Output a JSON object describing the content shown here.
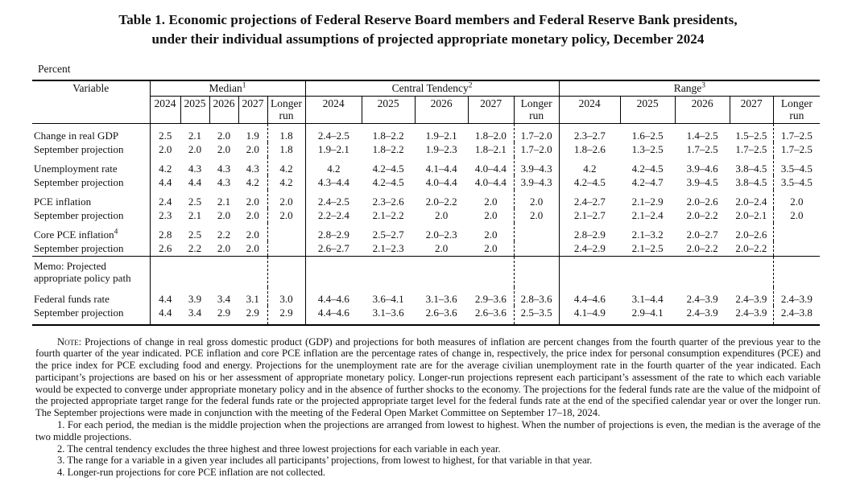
{
  "title": {
    "line1": "Table 1. Economic projections of Federal Reserve Board members and Federal Reserve Bank presidents,",
    "line2": "under their individual assumptions of projected appropriate monetary policy, December 2024"
  },
  "percent_label": "Percent",
  "colors": {
    "text": "#111111",
    "background": "#ffffff",
    "rule": "#000000"
  },
  "table": {
    "variable_header": "Variable",
    "september_label": "September projection",
    "sections": [
      {
        "label": "Median",
        "sup": "1"
      },
      {
        "label": "Central Tendency",
        "sup": "2"
      },
      {
        "label": "Range",
        "sup": "3"
      }
    ],
    "year_headers": [
      "2024",
      "2025",
      "2026",
      "2027",
      "Longer run"
    ],
    "rows": [
      {
        "label": "Change in real GDP",
        "sup": "",
        "current": {
          "median": [
            "2.5",
            "2.1",
            "2.0",
            "1.9",
            "1.8"
          ],
          "central_tendency": [
            "2.4–2.5",
            "1.8–2.2",
            "1.9–2.1",
            "1.8–2.0",
            "1.7–2.0"
          ],
          "range": [
            "2.3–2.7",
            "1.6–2.5",
            "1.4–2.5",
            "1.5–2.5",
            "1.7–2.5"
          ]
        },
        "september": {
          "median": [
            "2.0",
            "2.0",
            "2.0",
            "2.0",
            "1.8"
          ],
          "central_tendency": [
            "1.9–2.1",
            "1.8–2.2",
            "1.9–2.3",
            "1.8–2.1",
            "1.7–2.0"
          ],
          "range": [
            "1.8–2.6",
            "1.3–2.5",
            "1.7–2.5",
            "1.7–2.5",
            "1.7–2.5"
          ]
        }
      },
      {
        "label": "Unemployment rate",
        "sup": "",
        "current": {
          "median": [
            "4.2",
            "4.3",
            "4.3",
            "4.3",
            "4.2"
          ],
          "central_tendency": [
            "4.2",
            "4.2–4.5",
            "4.1–4.4",
            "4.0–4.4",
            "3.9–4.3"
          ],
          "range": [
            "4.2",
            "4.2–4.5",
            "3.9–4.6",
            "3.8–4.5",
            "3.5–4.5"
          ]
        },
        "september": {
          "median": [
            "4.4",
            "4.4",
            "4.3",
            "4.2",
            "4.2"
          ],
          "central_tendency": [
            "4.3–4.4",
            "4.2–4.5",
            "4.0–4.4",
            "4.0–4.4",
            "3.9–4.3"
          ],
          "range": [
            "4.2–4.5",
            "4.2–4.7",
            "3.9–4.5",
            "3.8–4.5",
            "3.5–4.5"
          ]
        }
      },
      {
        "label": "PCE inflation",
        "sup": "",
        "current": {
          "median": [
            "2.4",
            "2.5",
            "2.1",
            "2.0",
            "2.0"
          ],
          "central_tendency": [
            "2.4–2.5",
            "2.3–2.6",
            "2.0–2.2",
            "2.0",
            "2.0"
          ],
          "range": [
            "2.4–2.7",
            "2.1–2.9",
            "2.0–2.6",
            "2.0–2.4",
            "2.0"
          ]
        },
        "september": {
          "median": [
            "2.3",
            "2.1",
            "2.0",
            "2.0",
            "2.0"
          ],
          "central_tendency": [
            "2.2–2.4",
            "2.1–2.2",
            "2.0",
            "2.0",
            "2.0"
          ],
          "range": [
            "2.1–2.7",
            "2.1–2.4",
            "2.0–2.2",
            "2.0–2.1",
            "2.0"
          ]
        }
      },
      {
        "label": "Core PCE inflation",
        "sup": "4",
        "current": {
          "median": [
            "2.8",
            "2.5",
            "2.2",
            "2.0",
            ""
          ],
          "central_tendency": [
            "2.8–2.9",
            "2.5–2.7",
            "2.0–2.3",
            "2.0",
            ""
          ],
          "range": [
            "2.8–2.9",
            "2.1–3.2",
            "2.0–2.7",
            "2.0–2.6",
            ""
          ]
        },
        "september": {
          "median": [
            "2.6",
            "2.2",
            "2.0",
            "2.0",
            ""
          ],
          "central_tendency": [
            "2.6–2.7",
            "2.1–2.3",
            "2.0",
            "2.0",
            ""
          ],
          "range": [
            "2.4–2.9",
            "2.1–2.5",
            "2.0–2.2",
            "2.0–2.2",
            ""
          ]
        }
      },
      {
        "label": "Memo: Projected appropriate policy path",
        "sup": "",
        "memo": true
      },
      {
        "label": "Federal funds rate",
        "sup": "",
        "current": {
          "median": [
            "4.4",
            "3.9",
            "3.4",
            "3.1",
            "3.0"
          ],
          "central_tendency": [
            "4.4–4.6",
            "3.6–4.1",
            "3.1–3.6",
            "2.9–3.6",
            "2.8–3.6"
          ],
          "range": [
            "4.4–4.6",
            "3.1–4.4",
            "2.4–3.9",
            "2.4–3.9",
            "2.4–3.9"
          ]
        },
        "september": {
          "median": [
            "4.4",
            "3.4",
            "2.9",
            "2.9",
            "2.9"
          ],
          "central_tendency": [
            "4.4–4.6",
            "3.1–3.6",
            "2.6–3.6",
            "2.6–3.6",
            "2.5–3.5"
          ],
          "range": [
            "4.1–4.9",
            "2.9–4.1",
            "2.4–3.9",
            "2.4–3.9",
            "2.4–3.8"
          ]
        }
      }
    ]
  },
  "notes": {
    "note_label": "Note:",
    "note_text": "Projections of change in real gross domestic product (GDP) and projections for both measures of inflation are percent changes from the fourth quarter of the previous year to the fourth quarter of the year indicated. PCE inflation and core PCE inflation are the percentage rates of change in, respectively, the price index for personal consumption expenditures (PCE) and the price index for PCE excluding food and energy. Projections for the unemployment rate are for the average civilian unemployment rate in the fourth quarter of the year indicated. Each participant’s projections are based on his or her assessment of appropriate monetary policy. Longer-run projections represent each participant’s assessment of the rate to which each variable would be expected to converge under appropriate monetary policy and in the absence of further shocks to the economy. The projections for the federal funds rate are the value of the midpoint of the projected appropriate target range for the federal funds rate or the projected appropriate target level for the federal funds rate at the end of the specified calendar year or over the longer run. The September projections were made in conjunction with the meeting of the Federal Open Market Committee on September 17–18, 2024.",
    "footnotes": [
      "1. For each period, the median is the middle projection when the projections are arranged from lowest to highest. When the number of projections is even, the median is the average of the two middle projections.",
      "2. The central tendency excludes the three highest and three lowest projections for each variable in each year.",
      "3. The range for a variable in a given year includes all participants’ projections, from lowest to highest, for that variable in that year.",
      "4. Longer-run projections for core PCE inflation are not collected."
    ]
  }
}
